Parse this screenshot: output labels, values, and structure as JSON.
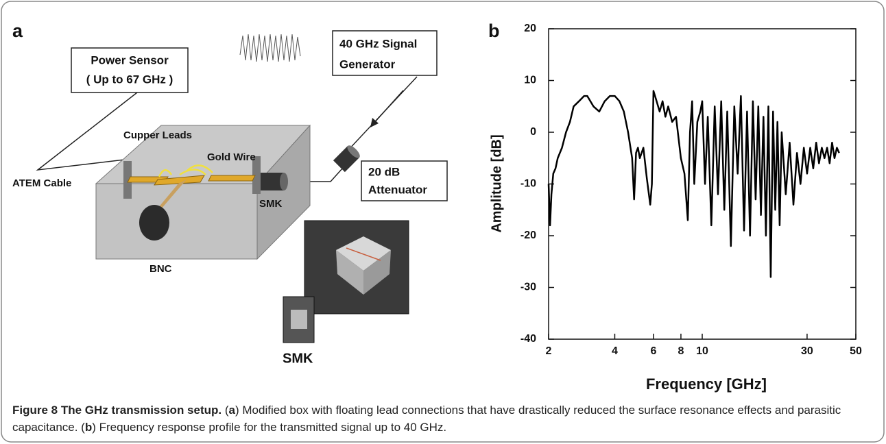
{
  "panel_a": {
    "label": "a",
    "power_sensor": [
      "Power Sensor",
      "( Up to 67 GHz )"
    ],
    "signal_generator": [
      "40 GHz Signal",
      "Generator"
    ],
    "attenuator": [
      "20 dB",
      "Attenuator"
    ],
    "cupper_leads": "Cupper Leads",
    "gold_wire": "Gold Wire",
    "atem_cable": "ATEM Cable",
    "smk_connector": "SMK",
    "bnc": "BNC",
    "photo_smk": "SMK"
  },
  "chart_data": {
    "type": "line",
    "panel_label": "b",
    "x_label": "Frequency [GHz]",
    "y_label": "Amplitude [dB]",
    "log_x": true,
    "color": "#000000",
    "xlim": [
      2,
      50
    ],
    "xticks": [
      2,
      4,
      6,
      8,
      10,
      30,
      50
    ],
    "ylim": [
      -40,
      20
    ],
    "yticks": [
      -40,
      -30,
      -20,
      -10,
      0,
      10,
      20
    ],
    "x": [
      2.0,
      2.03,
      2.06,
      2.1,
      2.15,
      2.2,
      2.3,
      2.4,
      2.5,
      2.6,
      2.75,
      2.9,
      3.0,
      3.2,
      3.4,
      3.6,
      3.8,
      4.0,
      4.2,
      4.4,
      4.6,
      4.8,
      4.9,
      5.0,
      5.1,
      5.2,
      5.4,
      5.6,
      5.8,
      5.9,
      6.0,
      6.2,
      6.4,
      6.6,
      6.8,
      7.0,
      7.3,
      7.6,
      8.0,
      8.3,
      8.6,
      8.8,
      9.0,
      9.2,
      9.5,
      9.8,
      10.0,
      10.3,
      10.6,
      11.0,
      11.4,
      11.8,
      12.2,
      12.6,
      13.0,
      13.5,
      14.0,
      14.5,
      15.0,
      15.5,
      16.0,
      16.5,
      17.0,
      17.5,
      18.0,
      18.5,
      19.0,
      19.5,
      20.0,
      20.5,
      21.0,
      21.5,
      22.0,
      22.5,
      23.0,
      24.0,
      25.0,
      26.0,
      27.0,
      28.0,
      29,
      30,
      31,
      32,
      33,
      34,
      35,
      36,
      37,
      38,
      39,
      40,
      41,
      42
    ],
    "values": [
      -10,
      -18,
      -12,
      -8,
      -7,
      -5,
      -3,
      0,
      2,
      5,
      6,
      7,
      7,
      5,
      4,
      6,
      7,
      7,
      6,
      4,
      0,
      -5,
      -13,
      -4,
      -3,
      -5,
      -3,
      -9,
      -14,
      -10,
      8,
      6,
      4,
      6,
      3,
      5,
      2,
      3,
      -5,
      -8,
      -17,
      0,
      6,
      -10,
      2,
      4,
      6,
      -10,
      3,
      -18,
      5,
      -12,
      6,
      -15,
      4,
      -22,
      5,
      -8,
      7,
      -19,
      4,
      -20,
      6,
      -13,
      5,
      -16,
      3,
      -20,
      5,
      -28,
      4,
      -15,
      2,
      -18,
      0,
      -12,
      -2,
      -14,
      -4,
      -10,
      -3,
      -8,
      -3,
      -7,
      -2,
      -6,
      -3,
      -5,
      -3,
      -6,
      -2,
      -5,
      -3,
      -4
    ]
  },
  "caption": {
    "title": "Figure 8 The GHz transmission setup.",
    "parts": [
      "(",
      "a",
      ") Modified box with floating lead connections that have drastically reduced the surface resonance effects and parasitic capacitance. (",
      "b",
      ") Frequency response profile for the transmitted signal up to 40 GHz."
    ]
  }
}
